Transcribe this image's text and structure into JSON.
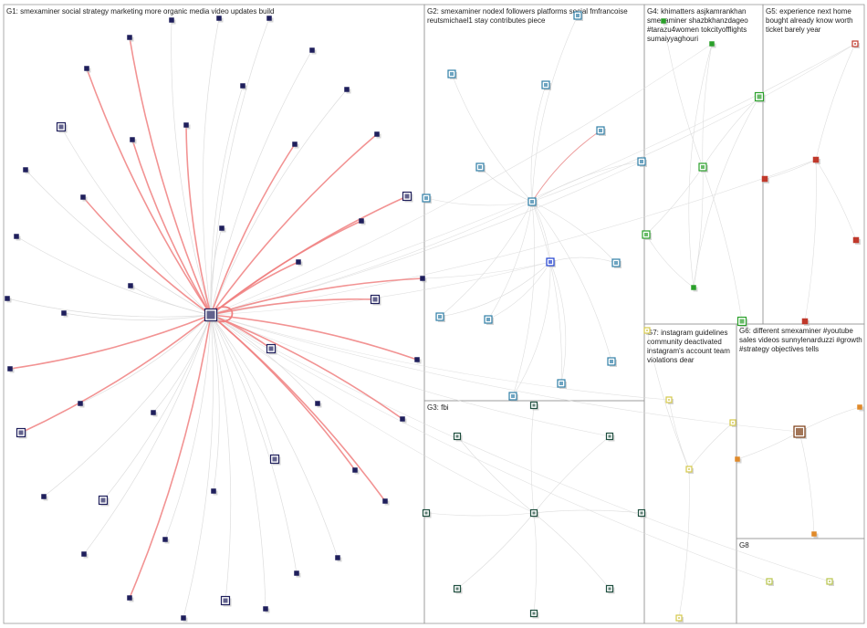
{
  "groups": [
    {
      "id": "G1",
      "label": "G1: smexaminer social strategy marketing more organic media video updates build"
    },
    {
      "id": "G2",
      "label": "G2: smexaminer nodexl followers platforms social fmfrancoise",
      "label2": "reutsmichael1 stay contributes piece"
    },
    {
      "id": "G3",
      "label": "G3: fbi"
    },
    {
      "id": "G4",
      "label": "G4: khimatters asjkamrankhan",
      "label2": "smexaminer shazbkhanzdageo",
      "label3": "#tarazu4women tokcityofflights",
      "label4": "sumaiyyaghouri"
    },
    {
      "id": "G5",
      "label": "G5: experience next home",
      "label2": "bought already know worth",
      "label3": "ticket barely year"
    },
    {
      "id": "G6",
      "label": "G6: different smexaminer #youtube",
      "label2": "sales videos sunnylenarduzzi #growth",
      "label3": "#strategy objectives tells"
    },
    {
      "id": "G7",
      "label": "G7: instagram guidelines",
      "label2": "community deactivated",
      "label3": "instagram's account team",
      "label4": "violations dear"
    },
    {
      "id": "G8",
      "label": "G8"
    }
  ],
  "colors": {
    "edge_gray": "#d9d9d9",
    "edge_red": "#f08080",
    "node_navy": "#1f1f5c",
    "node_teal": "#2f7ea6",
    "node_green": "#2aa02a",
    "node_red": "#c0392b",
    "node_yellow": "#d4c84a",
    "node_orange": "#e08a2a"
  }
}
